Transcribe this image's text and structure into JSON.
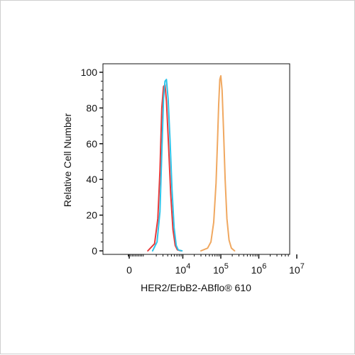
{
  "chart_data": {
    "type": "line",
    "title": "",
    "xlabel": "HER2/ErbB2-ABflo® 610",
    "ylabel": "Relative Cell Number",
    "x_scale": "biexponential (log above 10^3)",
    "y_ticks": [
      "0",
      "20",
      "40",
      "60",
      "80",
      "100"
    ],
    "ylim": [
      0,
      100
    ],
    "x_ticks": [
      {
        "value": 0,
        "label": "0"
      },
      {
        "value": 10000,
        "label": "10",
        "exp": "4"
      },
      {
        "value": 100000,
        "label": "10",
        "exp": "5"
      },
      {
        "value": 1000000,
        "label": "10",
        "exp": "6"
      },
      {
        "value": 10000000,
        "label": "10",
        "exp": "7"
      }
    ],
    "grid": false,
    "legend": "none",
    "series": [
      {
        "color": "#e8393a",
        "points": [
          [
            1200,
            0
          ],
          [
            1800,
            4
          ],
          [
            2200,
            18
          ],
          [
            2500,
            45
          ],
          [
            2800,
            80
          ],
          [
            3100,
            92
          ],
          [
            3400,
            93
          ],
          [
            3700,
            84
          ],
          [
            4200,
            60
          ],
          [
            4800,
            32
          ],
          [
            5500,
            12
          ],
          [
            6300,
            3
          ],
          [
            7200,
            0.5
          ],
          [
            9000,
            0
          ]
        ]
      },
      {
        "color": "#2ec4ea",
        "points": [
          [
            1600,
            0
          ],
          [
            2100,
            5
          ],
          [
            2500,
            22
          ],
          [
            2800,
            55
          ],
          [
            3100,
            85
          ],
          [
            3400,
            95
          ],
          [
            3700,
            96
          ],
          [
            4100,
            85
          ],
          [
            4600,
            62
          ],
          [
            5200,
            34
          ],
          [
            5900,
            13
          ],
          [
            6700,
            3
          ],
          [
            7600,
            0.5
          ],
          [
            9500,
            0
          ]
        ]
      },
      {
        "color": "#f0a860",
        "points": [
          [
            30000,
            0
          ],
          [
            45000,
            1.5
          ],
          [
            55000,
            5
          ],
          [
            65000,
            16
          ],
          [
            75000,
            38
          ],
          [
            82000,
            62
          ],
          [
            88000,
            82
          ],
          [
            94000,
            96
          ],
          [
            100000,
            98
          ],
          [
            108000,
            90
          ],
          [
            118000,
            68
          ],
          [
            130000,
            40
          ],
          [
            145000,
            18
          ],
          [
            165000,
            6
          ],
          [
            190000,
            1.5
          ],
          [
            230000,
            0
          ]
        ]
      }
    ]
  }
}
